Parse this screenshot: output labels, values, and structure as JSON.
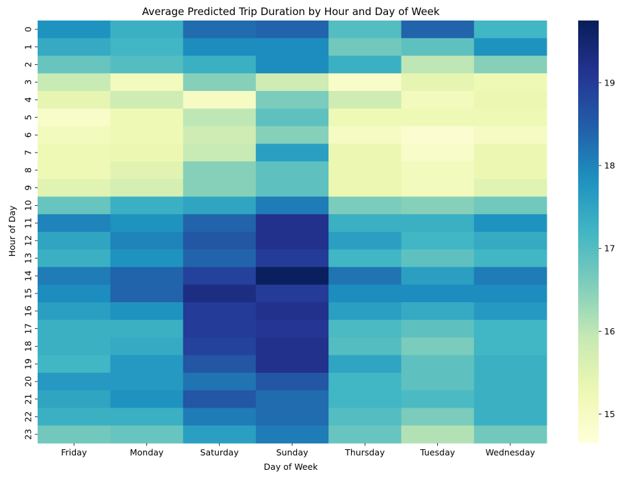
{
  "chart_data": {
    "type": "heatmap",
    "title": "Average Predicted Trip Duration by Hour and Day of Week",
    "xlabel": "Day of Week",
    "ylabel": "Hour of Day",
    "x": [
      "Friday",
      "Monday",
      "Saturday",
      "Sunday",
      "Thursday",
      "Tuesday",
      "Wednesday"
    ],
    "y": [
      "0",
      "1",
      "2",
      "3",
      "4",
      "5",
      "6",
      "7",
      "8",
      "9",
      "10",
      "11",
      "12",
      "13",
      "14",
      "15",
      "16",
      "17",
      "18",
      "19",
      "20",
      "21",
      "22",
      "23"
    ],
    "colorbar": {
      "ticks": [
        15,
        16,
        17,
        18,
        19
      ],
      "range": [
        14.65,
        19.75
      ],
      "colormap": "YlGnBu"
    },
    "values": [
      [
        17.8,
        17.3,
        18.3,
        18.4,
        17.0,
        18.4,
        17.2
      ],
      [
        17.4,
        17.2,
        17.9,
        17.9,
        16.7,
        16.9,
        17.8
      ],
      [
        16.8,
        17.0,
        17.3,
        17.9,
        17.3,
        16.0,
        16.5
      ],
      [
        15.9,
        15.1,
        16.5,
        15.8,
        14.9,
        15.4,
        15.2
      ],
      [
        15.4,
        15.8,
        15.0,
        16.6,
        15.8,
        15.1,
        15.3
      ],
      [
        14.9,
        15.2,
        16.0,
        16.9,
        15.2,
        15.2,
        15.2
      ],
      [
        15.1,
        15.2,
        15.8,
        16.5,
        15.0,
        14.8,
        15.0
      ],
      [
        15.2,
        15.3,
        15.9,
        17.6,
        15.3,
        14.9,
        15.3
      ],
      [
        15.2,
        15.5,
        16.5,
        16.9,
        15.3,
        15.1,
        15.3
      ],
      [
        15.5,
        15.7,
        16.5,
        16.9,
        15.3,
        15.1,
        15.5
      ],
      [
        16.8,
        17.3,
        17.5,
        18.1,
        16.6,
        16.5,
        16.7
      ],
      [
        18.0,
        17.8,
        18.4,
        19.2,
        17.3,
        17.3,
        17.8
      ],
      [
        17.5,
        18.0,
        18.6,
        19.2,
        17.6,
        17.2,
        17.4
      ],
      [
        17.3,
        17.8,
        18.4,
        19.0,
        17.2,
        16.9,
        17.2
      ],
      [
        18.1,
        18.4,
        18.9,
        19.7,
        18.2,
        17.6,
        18.1
      ],
      [
        17.9,
        18.4,
        19.3,
        19.0,
        17.9,
        17.9,
        17.9
      ],
      [
        17.6,
        17.8,
        19.0,
        19.2,
        17.6,
        17.4,
        17.7
      ],
      [
        17.3,
        17.3,
        19.0,
        19.1,
        17.1,
        16.9,
        17.2
      ],
      [
        17.3,
        17.4,
        18.9,
        19.2,
        17.0,
        16.6,
        17.2
      ],
      [
        17.2,
        17.7,
        18.6,
        19.2,
        17.5,
        16.9,
        17.3
      ],
      [
        17.7,
        17.7,
        18.2,
        18.6,
        17.2,
        16.9,
        17.3
      ],
      [
        17.5,
        17.8,
        18.6,
        18.3,
        17.2,
        17.1,
        17.3
      ],
      [
        17.3,
        17.3,
        18.1,
        18.3,
        17.0,
        16.6,
        17.3
      ],
      [
        16.7,
        16.8,
        17.6,
        18.1,
        16.8,
        16.1,
        16.7
      ]
    ]
  }
}
